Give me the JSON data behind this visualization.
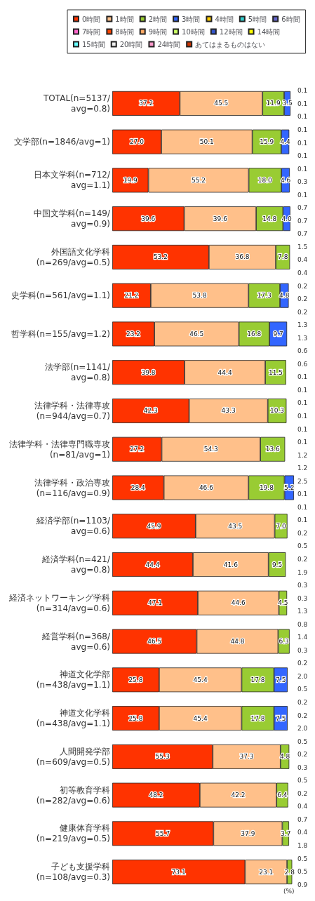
{
  "chart_data": {
    "type": "bar",
    "orientation": "horizontal",
    "stacked": true,
    "xlim": [
      0,
      100
    ],
    "tick_labels": "y",
    "xlabel": "(%)",
    "legend": "top",
    "grid": false,
    "categories": [
      "TOTAL(n=5137/avg=0.8)",
      "文学部(n=1846/avg=1)",
      "日本文学科(n=712/avg=1.1)",
      "中国文学科(n=149/avg=0.9)",
      "外国語文化学科\n(n=269/avg=0.5)",
      "史学科(n=561/avg=1.1)",
      "哲学科(n=155/avg=1.2)",
      "法学部(n=1141/avg=0.8)",
      "法律学科・法律専攻\n(n=944/avg=0.7)",
      "法律学科・法律専門職専攻\n(n=81/avg=1)",
      "法律学科・政治専攻\n(n=116/avg=0.9)",
      "経済学部(n=1103/avg=0.6)",
      "経済学科(n=421/avg=0.8)",
      "経済ネットワーキング学科\n(n=314/avg=0.6)",
      "経営学科(n=368/avg=0.6)",
      "神道文化学部\n(n=438/avg=1.1)",
      "神道文化学科\n(n=438/avg=1.1)",
      "人間開発学部\n(n=609/avg=0.5)",
      "初等教育学科\n(n=282/avg=0.6)",
      "健康体育学科\n(n=219/avg=0.5)",
      "子ども支援学科\n(n=108/avg=0.3)"
    ],
    "series": [
      {
        "name": "0時間",
        "color": "#ff3300",
        "values": [
          37.2,
          27.0,
          19.9,
          39.6,
          53.2,
          21.2,
          23.2,
          39.8,
          42.3,
          27.2,
          28.4,
          45.9,
          44.4,
          47.1,
          46.5,
          25.8,
          25.8,
          55.3,
          48.2,
          55.7,
          73.1
        ],
        "value_labels": [
          "37.2",
          "27.0",
          "19.9",
          "39.6",
          "53.2",
          "21.2",
          "23.2",
          "39.8",
          "42.3",
          "27.2",
          "28.4",
          "45.9",
          "44.4",
          "47.1",
          "46.5",
          "25.8",
          "25.8",
          "55.3",
          "48.2",
          "55.7",
          "73.1"
        ]
      },
      {
        "name": "1時間",
        "color": "#ffc08a",
        "values": [
          45.5,
          50.1,
          55.2,
          39.6,
          36.8,
          53.8,
          46.5,
          44.4,
          43.3,
          54.3,
          46.6,
          43.5,
          41.6,
          44.6,
          44.8,
          45.4,
          45.4,
          37.3,
          42.2,
          37.9,
          23.1
        ],
        "value_labels": [
          "45.5",
          "50.1",
          "55.2",
          "39.6",
          "36.8",
          "53.8",
          "46.5",
          "44.4",
          "43.3",
          "54.3",
          "46.6",
          "43.5",
          "41.6",
          "44.6",
          "44.8",
          "45.4",
          "45.4",
          "37.3",
          "42.2",
          "37.9",
          "23.1"
        ]
      },
      {
        "name": "2時間",
        "color": "#99cc33",
        "values": [
          11.9,
          15.9,
          18.0,
          14.8,
          7.8,
          17.3,
          16.8,
          11.5,
          10.3,
          13.6,
          19.8,
          7.0,
          9.5,
          4.5,
          6.3,
          17.8,
          17.8,
          4.8,
          6.4,
          3.7,
          2.8
        ],
        "value_labels": [
          "11.9",
          "15.9",
          "18.0",
          "14.8",
          "7.8",
          "17.3",
          "16.8",
          "11.5",
          "10.3",
          "13.6",
          "19.8",
          "7.0",
          "9.5",
          "4.5",
          "6.3",
          "17.8",
          "17.8",
          "4.8",
          "6.4",
          "3.7",
          "2.8"
        ]
      },
      {
        "name": "3時間",
        "color": "#3366ff",
        "values": [
          3.5,
          4.4,
          4.6,
          4.0,
          null,
          4.8,
          9.7,
          null,
          null,
          null,
          5.2,
          null,
          null,
          null,
          null,
          7.5,
          7.5,
          null,
          null,
          null,
          null
        ],
        "value_labels": [
          "3.5",
          "4.4",
          "4.6",
          "4.0",
          null,
          "4.8",
          "9.7",
          null,
          null,
          null,
          "5.2",
          null,
          null,
          null,
          null,
          "7.5",
          "7.5",
          null,
          null,
          null,
          null
        ]
      },
      {
        "name": "4時間",
        "color": "#ffcc00",
        "values": [
          null,
          null,
          null,
          null,
          null,
          null,
          null,
          null,
          null,
          null,
          null,
          null,
          null,
          null,
          null,
          null,
          null,
          null,
          null,
          null,
          null
        ]
      },
      {
        "name": "5時間",
        "color": "#33cccc",
        "values": [
          null,
          null,
          null,
          null,
          null,
          null,
          null,
          null,
          null,
          null,
          null,
          null,
          null,
          null,
          null,
          null,
          null,
          null,
          null,
          null,
          null
        ]
      },
      {
        "name": "6時間",
        "color": "#6666cc",
        "values": [
          null,
          null,
          null,
          null,
          null,
          null,
          null,
          null,
          null,
          null,
          null,
          null,
          null,
          null,
          null,
          null,
          null,
          null,
          null,
          null,
          null
        ]
      },
      {
        "name": "7時間",
        "color": "#ff66cc",
        "values": [
          null,
          null,
          null,
          null,
          null,
          null,
          null,
          null,
          null,
          null,
          null,
          null,
          null,
          null,
          null,
          null,
          null,
          null,
          null,
          null,
          null
        ]
      },
      {
        "name": "8時間",
        "color": "#ff4400",
        "values": [
          null,
          null,
          null,
          null,
          null,
          null,
          null,
          null,
          null,
          null,
          null,
          null,
          null,
          null,
          null,
          null,
          null,
          null,
          null,
          null,
          null
        ]
      },
      {
        "name": "9時間",
        "color": "#ffaa66",
        "values": [
          null,
          null,
          null,
          null,
          null,
          null,
          null,
          null,
          null,
          null,
          null,
          null,
          null,
          null,
          null,
          null,
          null,
          null,
          null,
          null,
          null
        ]
      },
      {
        "name": "10時間",
        "color": "#ccff66",
        "values": [
          null,
          null,
          null,
          null,
          null,
          null,
          null,
          null,
          null,
          null,
          null,
          null,
          null,
          null,
          null,
          null,
          null,
          null,
          null,
          null,
          null
        ]
      },
      {
        "name": "12時間",
        "color": "#3355cc",
        "values": [
          null,
          null,
          null,
          null,
          null,
          null,
          null,
          null,
          null,
          null,
          null,
          null,
          null,
          null,
          null,
          null,
          null,
          null,
          null,
          null,
          null
        ]
      },
      {
        "name": "14時間",
        "color": "#ffff00",
        "values": [
          null,
          null,
          null,
          null,
          null,
          null,
          null,
          null,
          null,
          null,
          null,
          null,
          null,
          null,
          null,
          null,
          null,
          null,
          null,
          null,
          null
        ]
      },
      {
        "name": "15時間",
        "color": "#66ffff",
        "values": [
          null,
          null,
          null,
          null,
          null,
          null,
          null,
          null,
          null,
          null,
          null,
          null,
          null,
          null,
          null,
          null,
          null,
          null,
          null,
          null,
          null
        ]
      },
      {
        "name": "20時間",
        "color": "#f0f0f0",
        "values": [
          null,
          null,
          null,
          null,
          null,
          null,
          null,
          null,
          null,
          null,
          null,
          null,
          null,
          null,
          null,
          null,
          null,
          null,
          null,
          null,
          null
        ]
      },
      {
        "name": "24時間",
        "color": "#ff99cc",
        "values": [
          null,
          null,
          null,
          null,
          null,
          null,
          null,
          null,
          null,
          null,
          null,
          null,
          null,
          null,
          null,
          null,
          null,
          null,
          null,
          null,
          null
        ]
      },
      {
        "name": "あてはまるものはない",
        "color": "#cc3300",
        "values": [
          null,
          null,
          null,
          null,
          null,
          null,
          null,
          null,
          null,
          null,
          null,
          null,
          null,
          null,
          null,
          null,
          null,
          null,
          null,
          null,
          null
        ]
      }
    ],
    "annotations": [
      "0.1",
      "0.1",
      "0.1",
      "0.1",
      "0.1",
      "0.1",
      "0.1",
      "0.3",
      "0.1",
      "0.7",
      "0.7",
      "0.7",
      "1.5",
      "0.4",
      "0.4",
      "0.2",
      "0.2",
      "0.2",
      "1.3",
      "1.3",
      "0.6",
      "0.6",
      "0.1",
      "0.1",
      "0.1",
      "0.1",
      "0.1",
      "0.1",
      "1.2",
      "1.2",
      "2.5",
      "0.1",
      "0.1",
      "0.1",
      "0.2",
      "0.5",
      "0.2",
      "1.9",
      "0.3",
      "0.3",
      "1.3",
      "0.8",
      "1.4",
      "0.3",
      "0.2",
      "2.0",
      "0.5",
      "0.2",
      "0.2",
      "2.0",
      "0.5",
      "0.2",
      "0.3",
      "0.5",
      "0.2",
      "0.4",
      "0.7",
      "0.4",
      "1.8",
      "0.5",
      "0.5",
      "0.9"
    ]
  }
}
